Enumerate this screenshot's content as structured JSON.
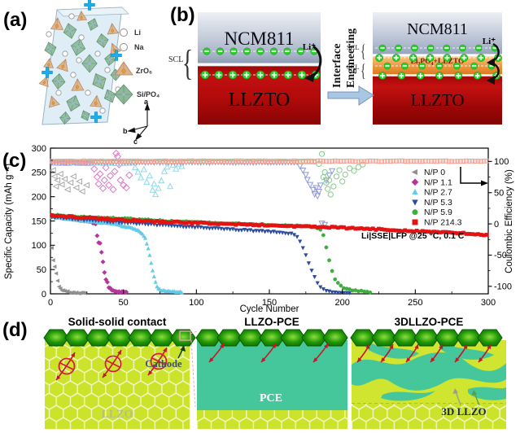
{
  "panel_a": {
    "label": "(a)",
    "legend": [
      {
        "label": "Li"
      },
      {
        "label": "Na"
      },
      {
        "label": "ZrO₆"
      },
      {
        "label": "Si/PO₄"
      }
    ],
    "axis_labels": {
      "a": "a",
      "b": "b",
      "c": "c"
    }
  },
  "panel_b": {
    "label": "(b)",
    "process_line1": "Interface",
    "process_line2": "Engineering",
    "before": {
      "cathode": "NCM811",
      "electrolyte": "LLZTO",
      "scl_label": "SCL",
      "li_ion_label": "Li⁺"
    },
    "after": {
      "cathode": "NCM811",
      "interlayer": "Li₃PO₄+LLZTO",
      "electrolyte": "LLZTO",
      "scl_top_label": "SCL",
      "scl_bottom_label": "SCL",
      "li_ion_label": "Li⁺"
    }
  },
  "panel_c": {
    "label": "(c)"
  },
  "panel_d": {
    "label": "(d)",
    "blocks": [
      {
        "title": "Solid-solid contact",
        "cathode_label": "Cathode",
        "bottom_label": "LLZO"
      },
      {
        "title": "LLZO-PCE",
        "body_label": "PCE"
      },
      {
        "title": "3DLLZO-PCE",
        "body_label": "3D LLZO"
      }
    ]
  },
  "chart_data": {
    "type": "scatter",
    "xlabel": "Cycle Number",
    "ylabel_left": "Specific Capacity (mAh g⁻¹)",
    "ylabel_right": "Coulombic Efficiency (%)",
    "annotation": "Li|SSE|LFP @25 °C, 0.1 C",
    "xlim": [
      0,
      300
    ],
    "ylim_left": [
      0,
      300
    ],
    "x_ticks": [
      0,
      50,
      100,
      150,
      200,
      250,
      300
    ],
    "y_ticks_left": [
      0,
      50,
      100,
      150,
      200,
      250,
      300
    ],
    "y_ticks_right": [
      100,
      50,
      0,
      -50,
      -100
    ],
    "right_axis_map": {
      "c_at_zero_eff": 144,
      "c_per_eff": 1.2855
    },
    "grid": false,
    "legend_position": "center-right",
    "legend": [
      {
        "label": "N/P 0",
        "marker": "triangle-left",
        "color": "#8f8f8f"
      },
      {
        "label": "N/P 1.1",
        "marker": "diamond",
        "color": "#b5359c"
      },
      {
        "label": "N/P 2.7",
        "marker": "triangle-up",
        "color": "#62cbe8"
      },
      {
        "label": "N/P 5.3",
        "marker": "triangle-down",
        "color": "#2b4ba0"
      },
      {
        "label": "N/P 5.9",
        "marker": "circle",
        "color": "#3fae3f"
      },
      {
        "label": "N/P 214.3",
        "marker": "square",
        "color": "#e41313"
      }
    ],
    "capacity_series": [
      {
        "name": "N/P 0",
        "marker": "triangle-left",
        "color": "#8f8f8f",
        "step": 1,
        "jitter": 1.5,
        "keypoints": [
          [
            1,
            95
          ],
          [
            2,
            70
          ],
          [
            3,
            55
          ],
          [
            4,
            42
          ],
          [
            5,
            28
          ],
          [
            6,
            16
          ],
          [
            7,
            10
          ],
          [
            8,
            7
          ],
          [
            10,
            5
          ],
          [
            14,
            3
          ],
          [
            18,
            2
          ],
          [
            24,
            2
          ]
        ]
      },
      {
        "name": "N/P 1.1",
        "marker": "diamond",
        "color": "#b5359c",
        "step": 1,
        "jitter": 1.2,
        "keypoints": [
          [
            1,
            160
          ],
          [
            10,
            156
          ],
          [
            20,
            152
          ],
          [
            28,
            148
          ],
          [
            31,
            143
          ],
          [
            32,
            120
          ],
          [
            33,
            106
          ],
          [
            34,
            104
          ],
          [
            35,
            85
          ],
          [
            36,
            66
          ],
          [
            37,
            44
          ],
          [
            38,
            30
          ],
          [
            39,
            24
          ],
          [
            40,
            14
          ],
          [
            42,
            8
          ],
          [
            45,
            5
          ],
          [
            48,
            4
          ],
          [
            52,
            3
          ]
        ]
      },
      {
        "name": "N/P 2.7",
        "marker": "triangle-up",
        "color": "#62cbe8",
        "step": 1,
        "jitter": 1.2,
        "keypoints": [
          [
            1,
            159
          ],
          [
            20,
            151
          ],
          [
            40,
            145
          ],
          [
            55,
            136
          ],
          [
            60,
            130
          ],
          [
            63,
            124
          ],
          [
            65,
            114
          ],
          [
            66,
            104
          ],
          [
            67,
            94
          ],
          [
            68,
            80
          ],
          [
            69,
            63
          ],
          [
            70,
            48
          ],
          [
            71,
            35
          ],
          [
            72,
            23
          ],
          [
            73,
            15
          ],
          [
            74,
            10
          ],
          [
            76,
            7
          ],
          [
            80,
            5
          ],
          [
            85,
            4
          ],
          [
            90,
            3
          ]
        ]
      },
      {
        "name": "N/P 5.3",
        "marker": "triangle-down",
        "color": "#2b4ba0",
        "step": 2,
        "jitter": 1.2,
        "keypoints": [
          [
            1,
            158
          ],
          [
            20,
            153
          ],
          [
            50,
            147
          ],
          [
            80,
            141
          ],
          [
            110,
            135
          ],
          [
            140,
            130
          ],
          [
            160,
            126
          ],
          [
            166,
            123
          ],
          [
            169,
            118
          ],
          [
            171,
            108
          ],
          [
            173,
            95
          ],
          [
            175,
            80
          ],
          [
            177,
            64
          ],
          [
            179,
            48
          ],
          [
            181,
            34
          ],
          [
            183,
            22
          ],
          [
            185,
            14
          ],
          [
            187,
            9
          ],
          [
            190,
            5
          ],
          [
            195,
            3
          ],
          [
            200,
            2
          ],
          [
            205,
            2
          ]
        ]
      },
      {
        "name": "N/P 5.9",
        "marker": "circle",
        "color": "#3fae3f",
        "step": 2,
        "jitter": 1.2,
        "keypoints": [
          [
            1,
            163
          ],
          [
            20,
            159
          ],
          [
            50,
            155
          ],
          [
            80,
            150
          ],
          [
            110,
            146
          ],
          [
            140,
            143
          ],
          [
            160,
            141
          ],
          [
            175,
            139
          ],
          [
            182,
            137
          ],
          [
            185,
            133
          ],
          [
            187,
            120
          ],
          [
            188,
            108
          ],
          [
            189,
            96
          ],
          [
            190,
            84
          ],
          [
            191,
            70
          ],
          [
            192,
            57
          ],
          [
            193,
            46
          ],
          [
            194,
            38
          ],
          [
            195,
            31
          ],
          [
            197,
            22
          ],
          [
            200,
            14
          ],
          [
            204,
            9
          ],
          [
            208,
            7
          ],
          [
            214,
            5
          ],
          [
            220,
            4
          ]
        ]
      },
      {
        "name": "N/P 214.3",
        "marker": "square",
        "color": "#e41313",
        "step": 2,
        "jitter": 1.4,
        "keypoints": [
          [
            1,
            162
          ],
          [
            20,
            157
          ],
          [
            50,
            152
          ],
          [
            80,
            148
          ],
          [
            110,
            145
          ],
          [
            140,
            142
          ],
          [
            170,
            139
          ],
          [
            200,
            136
          ],
          [
            230,
            132
          ],
          [
            260,
            128
          ],
          [
            285,
            124
          ],
          [
            300,
            121
          ]
        ]
      }
    ],
    "efficiency_series": [
      {
        "name": "N/P 0 CE",
        "marker": "triangle-left",
        "color": "#a8a8a8",
        "scatter": [
          [
            2,
            86
          ],
          [
            3,
            76
          ],
          [
            4,
            60
          ],
          [
            5,
            70
          ],
          [
            7,
            80
          ],
          [
            8,
            63
          ],
          [
            10,
            72
          ],
          [
            12,
            55
          ],
          [
            14,
            66
          ],
          [
            16,
            76
          ],
          [
            18,
            58
          ],
          [
            20,
            68
          ],
          [
            22,
            52
          ],
          [
            25,
            62
          ]
        ]
      },
      {
        "name": "N/P 1.1 CE",
        "marker": "diamond",
        "color": "#d77ec4",
        "band": {
          "from": 2,
          "to": 28,
          "value": 98,
          "step": 2,
          "jitter": 0.8
        },
        "scatter": [
          [
            30,
            88
          ],
          [
            32,
            75
          ],
          [
            33,
            64
          ],
          [
            34,
            80
          ],
          [
            36,
            57
          ],
          [
            37,
            70
          ],
          [
            38,
            90
          ],
          [
            40,
            62
          ],
          [
            41,
            77
          ],
          [
            43,
            55
          ],
          [
            44,
            84
          ],
          [
            45,
            113
          ],
          [
            46,
            108
          ],
          [
            47,
            95
          ],
          [
            48,
            70
          ],
          [
            50,
            62
          ],
          [
            52,
            58
          ],
          [
            54,
            78
          ]
        ]
      },
      {
        "name": "N/P 2.7 CE",
        "marker": "triangle-up",
        "color": "#8fd9ec",
        "band": {
          "from": 2,
          "to": 57,
          "value": 96.5,
          "step": 2,
          "jitter": 0.8
        },
        "scatter": [
          [
            58,
            90
          ],
          [
            60,
            83
          ],
          [
            62,
            74
          ],
          [
            64,
            87
          ],
          [
            66,
            67
          ],
          [
            68,
            77
          ],
          [
            70,
            54
          ],
          [
            71,
            64
          ],
          [
            72,
            47
          ],
          [
            74,
            57
          ],
          [
            76,
            69
          ],
          [
            78,
            84
          ],
          [
            80,
            91
          ],
          [
            82,
            60
          ],
          [
            84,
            94
          ],
          [
            86,
            88
          ],
          [
            88,
            96
          ],
          [
            90,
            92
          ]
        ]
      },
      {
        "name": "N/P 5.3 CE",
        "marker": "triangle-down",
        "color": "#8f9ad8",
        "band": {
          "from": 1,
          "to": 169,
          "value": 98.3,
          "step": 2,
          "jitter": 0.6
        },
        "scatter": [
          [
            171,
            93
          ],
          [
            173,
            86
          ],
          [
            175,
            79
          ],
          [
            176,
            71
          ],
          [
            178,
            63
          ],
          [
            180,
            55
          ],
          [
            181,
            48
          ],
          [
            182,
            58
          ],
          [
            183,
            45
          ],
          [
            184,
            52
          ],
          [
            185,
            62
          ],
          [
            186,
            1
          ],
          [
            188,
            -1
          ],
          [
            189,
            70
          ],
          [
            191,
            78
          ],
          [
            193,
            85
          ]
        ]
      },
      {
        "name": "N/P 5.9 CE",
        "marker": "circle",
        "color": "#86c98a",
        "band": {
          "from": 1,
          "to": 182,
          "value": 99.3,
          "step": 2,
          "jitter": 0.5
        },
        "scatter": [
          [
            184,
            96
          ],
          [
            186,
            112
          ],
          [
            187,
            75
          ],
          [
            188,
            83
          ],
          [
            189,
            66
          ],
          [
            190,
            56
          ],
          [
            191,
            70
          ],
          [
            192,
            47
          ],
          [
            194,
            60
          ],
          [
            196,
            76
          ],
          [
            198,
            86
          ],
          [
            200,
            68
          ],
          [
            202,
            79
          ],
          [
            205,
            89
          ],
          [
            208,
            85
          ],
          [
            211,
            91
          ],
          [
            214,
            95
          ]
        ]
      },
      {
        "name": "N/P 214.3 CE",
        "marker": "square",
        "color": "#f5a294",
        "band": {
          "from": 1,
          "to": 300,
          "value": 100.5,
          "step": 2,
          "jitter": 0.5
        },
        "scatter": []
      }
    ]
  }
}
